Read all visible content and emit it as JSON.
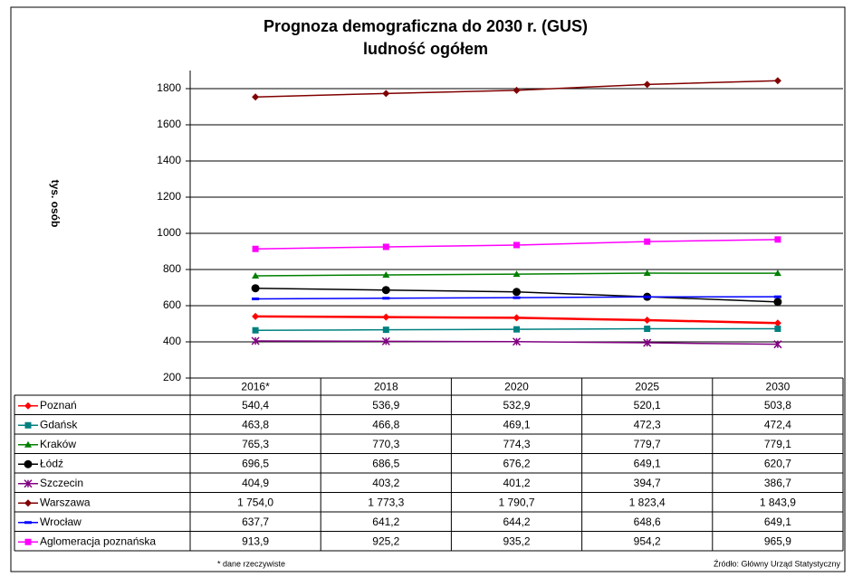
{
  "chart_data": {
    "type": "line",
    "title": "Prognoza demograficzna do 2030 r. (GUS)",
    "subtitle": "ludność ogółem",
    "y_label": "tys. osób",
    "categories": [
      "2016*",
      "2018",
      "2020",
      "2025",
      "2030"
    ],
    "ylim": [
      200,
      1900
    ],
    "yticks": [
      200,
      400,
      600,
      800,
      1000,
      1200,
      1400,
      1600,
      1800
    ],
    "grid": true,
    "series": [
      {
        "name": "Poznań",
        "color": "#ff0000",
        "marker": "diamond",
        "values": [
          540.4,
          536.9,
          532.9,
          520.1,
          503.8
        ],
        "value_labels": [
          "540,4",
          "536,9",
          "532,9",
          "520,1",
          "503,8"
        ]
      },
      {
        "name": "Gdańsk",
        "color": "#008080",
        "marker": "square",
        "values": [
          463.8,
          466.8,
          469.1,
          472.3,
          472.4
        ],
        "value_labels": [
          "463,8",
          "466,8",
          "469,1",
          "472,3",
          "472,4"
        ]
      },
      {
        "name": "Kraków",
        "color": "#008000",
        "marker": "triangle",
        "values": [
          765.3,
          770.3,
          774.3,
          779.7,
          779.1
        ],
        "value_labels": [
          "765,3",
          "770,3",
          "774,3",
          "779,7",
          "779,1"
        ]
      },
      {
        "name": "Łódź",
        "color": "#000000",
        "marker": "circle",
        "values": [
          696.5,
          686.5,
          676.2,
          649.1,
          620.7
        ],
        "value_labels": [
          "696,5",
          "686,5",
          "676,2",
          "649,1",
          "620,7"
        ]
      },
      {
        "name": "Szczecin",
        "color": "#800080",
        "marker": "star",
        "values": [
          404.9,
          403.2,
          401.2,
          394.7,
          386.7
        ],
        "value_labels": [
          "404,9",
          "403,2",
          "401,2",
          "394,7",
          "386,7"
        ]
      },
      {
        "name": "Warszawa",
        "color": "#800000",
        "marker": "diamond",
        "values": [
          1754.0,
          1773.3,
          1790.7,
          1823.4,
          1843.9
        ],
        "value_labels": [
          "1 754,0",
          "1 773,3",
          "1 790,7",
          "1 823,4",
          "1 843,9"
        ]
      },
      {
        "name": "Wrocław",
        "color": "#0000ff",
        "marker": "dash",
        "values": [
          637.7,
          641.2,
          644.2,
          648.6,
          649.1
        ],
        "value_labels": [
          "637,7",
          "641,2",
          "644,2",
          "648,6",
          "649,1"
        ]
      },
      {
        "name": "Aglomeracja poznańska",
        "color": "#ff00ff",
        "marker": "square",
        "values": [
          913.9,
          925.2,
          935.2,
          954.2,
          965.9
        ],
        "value_labels": [
          "913,9",
          "925,2",
          "935,2",
          "954,2",
          "965,9"
        ]
      }
    ],
    "footnote": "* dane rzeczywiste",
    "source": "Źródło: Główny Urząd Statystyczny"
  }
}
